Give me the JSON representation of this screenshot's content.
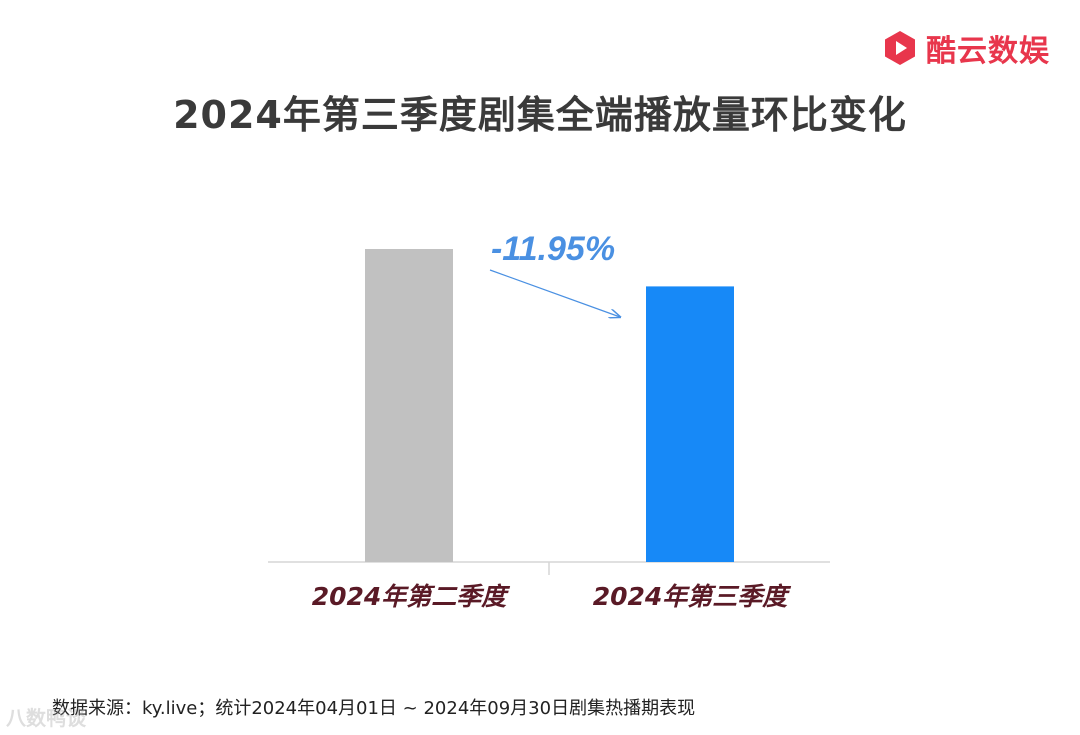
{
  "brand": {
    "name": "酷云数娱",
    "color": "#e8364c"
  },
  "title": "2024年第三季度剧集全端播放量环比变化",
  "chart_data": {
    "type": "bar",
    "categories": [
      "2024年第二季度",
      "2024年第三季度"
    ],
    "series": [
      {
        "values": [
          100,
          88.05
        ]
      }
    ],
    "colors": [
      "#c1c1c1",
      "#1789f7"
    ],
    "annotation": "-11.95%",
    "annotation_color": "#4a90e2",
    "category_label_color": "#5a1a26",
    "ylim": [
      0,
      100
    ],
    "grid": false,
    "legend": "none"
  },
  "footer": {
    "source": "数据来源：ky.live；统计2024年04月01日 ~ 2024年09月30日剧集热播期表现"
  },
  "watermark": "八数鸭谈"
}
